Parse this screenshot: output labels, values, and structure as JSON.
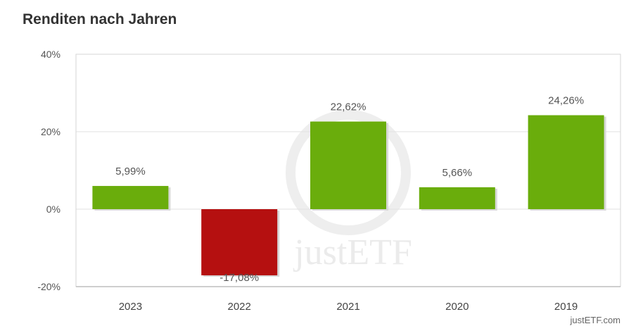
{
  "title": "Renditen nach Jahren",
  "credit": "justETF.com",
  "watermark": "justETF",
  "chart_data": {
    "type": "bar",
    "title": "Renditen nach Jahren",
    "xlabel": "",
    "ylabel": "",
    "categories": [
      "2023",
      "2022",
      "2021",
      "2020",
      "2019"
    ],
    "values": [
      5.99,
      -17.08,
      22.62,
      5.66,
      24.26
    ],
    "value_labels": [
      "5,99%",
      "-17,08%",
      "22,62%",
      "5,66%",
      "24,26%"
    ],
    "ylim": [
      -20,
      40
    ],
    "yticks": [
      40,
      20,
      0,
      -20
    ],
    "ytick_labels": [
      "40%",
      "20%",
      "0%",
      "-20%"
    ],
    "colors": {
      "positive": "#6aad0c",
      "negative": "#b51010"
    },
    "grid": true,
    "legend": "none"
  }
}
